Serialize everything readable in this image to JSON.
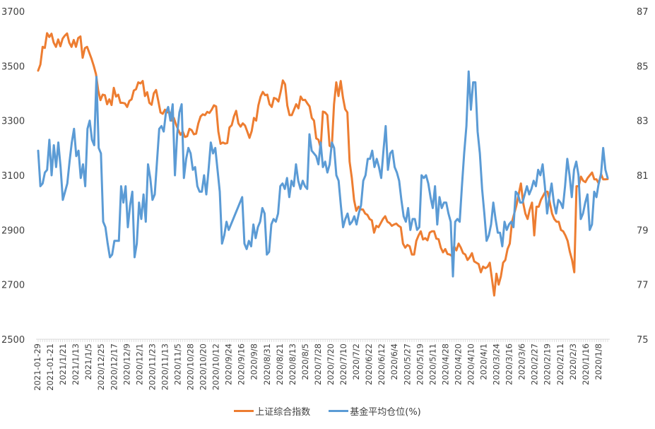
{
  "chart_data": {
    "type": "line",
    "title": "",
    "xlabel": "",
    "ylabel_left": "",
    "ylabel_right": "",
    "grid": false,
    "legend_placement": "bottom-center",
    "y_left": {
      "min": 2500,
      "max": 3700,
      "ticks": [
        2500,
        2700,
        2900,
        3100,
        3300,
        3500,
        3700
      ]
    },
    "y_right": {
      "min": 75,
      "max": 87,
      "ticks": [
        75,
        77,
        79,
        81,
        83,
        85,
        87
      ]
    },
    "x_tick_labels": [
      "2021-01-29",
      "2021-01-21",
      "2021/1/21",
      "2021/1/13",
      "2021/1/5",
      "2020/12/25",
      "2020/12/17",
      "2020/12/9",
      "2020/12/1",
      "2020/11/23",
      "2020/11/13",
      "2020/11/5",
      "2020/10/28",
      "2020/10/20",
      "2020/10/12",
      "2020/9/24",
      "2020/9/16",
      "2020/9/8",
      "2020/8/31",
      "2020/8/21",
      "2020/8/13",
      "2020/8/5",
      "2020/7/28",
      "2020/7/20",
      "2020/7/10",
      "2020/7/2",
      "2020/6/22",
      "2020/6/12",
      "2020/6/4",
      "2020/5/27",
      "2020/5/19",
      "2020/5/11",
      "2020/4/28",
      "2020/4/20",
      "2020/4/10",
      "2020/4/1",
      "2020/3/24",
      "2020/3/16",
      "2020/3/6",
      "2020/2/27",
      "2020/2/19",
      "2020/2/11",
      "2020/2/3",
      "2020/1/16",
      "2020/1/8"
    ],
    "series": [
      {
        "name": "上证综合指数",
        "axis": "left",
        "color": "#ED7D31",
        "values": [
          3483,
          3505,
          3570,
          3566,
          3620,
          3606,
          3618,
          3585,
          3570,
          3597,
          3572,
          3600,
          3611,
          3619,
          3585,
          3570,
          3595,
          3570,
          3602,
          3608,
          3530,
          3565,
          3570,
          3548,
          3526,
          3500,
          3470,
          3410,
          3375,
          3395,
          3393,
          3360,
          3378,
          3357,
          3420,
          3388,
          3395,
          3365,
          3365,
          3363,
          3350,
          3372,
          3378,
          3410,
          3415,
          3440,
          3436,
          3445,
          3390,
          3404,
          3365,
          3358,
          3400,
          3412,
          3372,
          3330,
          3325,
          3340,
          3330,
          3331,
          3300,
          3310,
          3285,
          3266,
          3248,
          3260,
          3240,
          3243,
          3270,
          3265,
          3250,
          3252,
          3290,
          3315,
          3323,
          3320,
          3332,
          3328,
          3340,
          3356,
          3352,
          3260,
          3215,
          3220,
          3216,
          3218,
          3275,
          3283,
          3315,
          3336,
          3290,
          3278,
          3290,
          3282,
          3260,
          3237,
          3262,
          3310,
          3300,
          3356,
          3388,
          3405,
          3393,
          3395,
          3360,
          3350,
          3383,
          3380,
          3370,
          3405,
          3447,
          3433,
          3355,
          3320,
          3320,
          3340,
          3360,
          3345,
          3388,
          3375,
          3376,
          3363,
          3352,
          3310,
          3300,
          3235,
          3230,
          3200,
          3333,
          3330,
          3320,
          3208,
          3203,
          3360,
          3440,
          3390,
          3445,
          3385,
          3342,
          3330,
          3150,
          3090,
          3010,
          2970,
          2985,
          2975,
          2975,
          2960,
          2955,
          2940,
          2935,
          2890,
          2915,
          2910,
          2925,
          2940,
          2950,
          2930,
          2925,
          2915,
          2920,
          2923,
          2915,
          2910,
          2850,
          2835,
          2845,
          2840,
          2810,
          2810,
          2860,
          2880,
          2895,
          2865,
          2870,
          2862,
          2890,
          2895,
          2895,
          2868,
          2866,
          2835,
          2818,
          2830,
          2812,
          2810,
          2805,
          2840,
          2825,
          2850,
          2835,
          2815,
          2810,
          2790,
          2800,
          2815,
          2785,
          2780,
          2775,
          2745,
          2766,
          2760,
          2765,
          2780,
          2720,
          2660,
          2740,
          2700,
          2730,
          2780,
          2790,
          2830,
          2850,
          2930,
          2960,
          2990,
          3030,
          3070,
          3000,
          2960,
          2940,
          2975,
          3000,
          2880,
          2985,
          2985,
          3010,
          3025,
          3040,
          3040,
          3000,
          2960,
          2940,
          2930,
          2930,
          2900,
          2895,
          2880,
          2860,
          2820,
          2790,
          2745,
          3060,
          3060,
          3095,
          3080,
          3075,
          3090,
          3100,
          3110,
          3085,
          3085,
          3070,
          3105,
          3085,
          3085,
          3086
        ]
      },
      {
        "name": "基金平均仓位(%)",
        "axis": "right",
        "color": "#5B9BD5",
        "values": [
          81.9,
          80.6,
          80.7,
          81.1,
          81.2,
          82.3,
          81.0,
          82.1,
          81.3,
          82.2,
          81.3,
          80.1,
          80.4,
          80.7,
          81.5,
          82.2,
          82.7,
          81.7,
          81.9,
          80.9,
          81.4,
          80.6,
          82.7,
          83.0,
          82.3,
          82.1,
          84.6,
          82.0,
          81.8,
          79.3,
          79.1,
          78.5,
          78.0,
          78.1,
          78.6,
          78.6,
          78.6,
          80.6,
          80.0,
          80.6,
          79.1,
          79.9,
          80.4,
          78.0,
          78.5,
          80.0,
          79.4,
          80.3,
          79.3,
          81.4,
          80.9,
          80.1,
          80.3,
          81.5,
          82.7,
          82.8,
          82.6,
          83.3,
          83.5,
          83.0,
          83.6,
          81.0,
          82.5,
          83.3,
          83.6,
          80.9,
          81.6,
          82.0,
          81.8,
          81.2,
          81.3,
          80.6,
          80.4,
          80.4,
          81.0,
          80.3,
          81.2,
          82.2,
          81.8,
          82.0,
          81.2,
          80.4,
          78.5,
          78.8,
          79.3,
          79.0,
          79.2,
          79.4,
          79.6,
          79.8,
          80.0,
          80.2,
          78.5,
          78.3,
          78.6,
          78.4,
          79.2,
          78.7,
          79.1,
          79.3,
          79.8,
          79.6,
          78.1,
          78.2,
          79.2,
          79.4,
          79.3,
          79.6,
          80.6,
          80.7,
          80.5,
          80.9,
          80.2,
          80.8,
          80.6,
          81.4,
          80.8,
          80.5,
          80.8,
          80.6,
          80.5,
          82.5,
          81.9,
          81.8,
          81.7,
          81.4,
          82.2,
          81.3,
          81.5,
          81.1,
          81.4,
          82.2,
          82.0,
          81.0,
          80.8,
          79.9,
          79.1,
          79.4,
          79.6,
          79.2,
          79.3,
          79.5,
          79.2,
          79.6,
          79.9,
          80.8,
          81.0,
          81.6,
          81.6,
          81.9,
          81.3,
          81.6,
          81.3,
          80.9,
          81.9,
          82.8,
          81.2,
          81.8,
          81.9,
          81.3,
          81.1,
          80.8,
          80.1,
          79.5,
          79.3,
          79.8,
          79.0,
          79.4,
          79.4,
          79.0,
          79.1,
          81.0,
          80.9,
          81.0,
          80.7,
          80.2,
          79.8,
          80.6,
          79.2,
          80.2,
          79.8,
          80.0,
          80.0,
          79.6,
          79.3,
          77.3,
          79.3,
          79.4,
          79.3,
          80.6,
          81.8,
          82.8,
          84.8,
          83.4,
          84.4,
          84.4,
          82.6,
          81.8,
          80.5,
          79.6,
          78.6,
          78.8,
          79.2,
          80.0,
          79.4,
          78.9,
          78.9,
          78.4,
          79.3,
          79.0,
          79.2,
          79.3,
          79.1,
          80.4,
          80.3,
          80.0,
          80.0,
          80.3,
          80.6,
          80.3,
          80.5,
          80.8,
          80.6,
          81.2,
          81.0,
          81.4,
          80.6,
          79.6,
          80.2,
          80.7,
          80.0,
          79.6,
          80.1,
          80.0,
          79.8,
          80.6,
          81.6,
          81.0,
          80.2,
          81.2,
          81.5,
          81.0,
          79.4,
          79.6,
          80.0,
          80.3,
          79.0,
          79.2,
          80.4,
          80.2,
          80.7,
          81.0,
          82.0,
          81.2,
          80.9
        ]
      }
    ]
  }
}
